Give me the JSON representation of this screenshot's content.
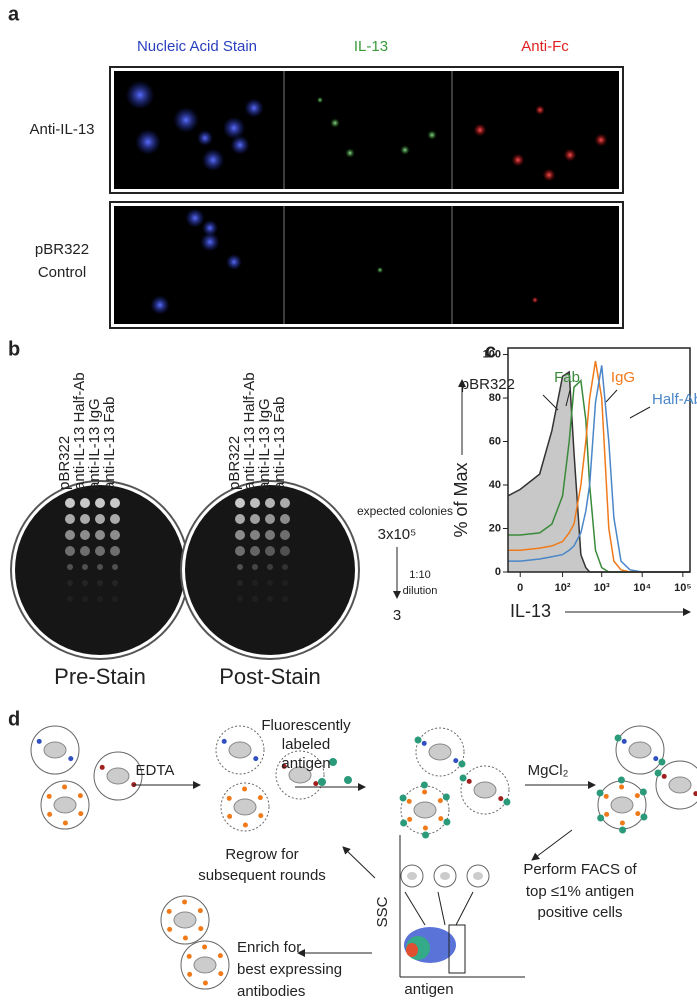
{
  "panel_a": {
    "label": "a",
    "columns": [
      "Nucleic Acid Stain",
      "IL-13",
      "Anti-Fc"
    ],
    "rows": [
      [
        "Anti-IL-13"
      ],
      [
        "pBR322",
        "Control"
      ]
    ]
  },
  "panel_b": {
    "label": "b",
    "plate_labels": [
      "pBR322",
      "anti-IL-13 Half-Ab",
      "anti-IL-13 IgG",
      "anti-IL-13 Fab"
    ],
    "plates": [
      "Pre-Stain",
      "Post-Stain"
    ],
    "expected": "expected colonies",
    "top": "3x10⁵",
    "dilution": [
      "1:10",
      "dilution"
    ],
    "bottom": "3"
  },
  "panel_c": {
    "label": "c"
  },
  "chart_data": {
    "type": "line",
    "xlabel": "IL-13",
    "ylabel": "% of Max",
    "xscale": "biexponential",
    "x": [
      -10,
      0,
      20,
      50,
      100,
      150,
      200,
      300,
      400,
      500,
      700,
      1000,
      1500,
      2000,
      3000,
      5000,
      10000,
      150000
    ],
    "series": [
      {
        "name": "pBR322",
        "color": "#333333",
        "fill": "#c8c8c8",
        "values": [
          35,
          38,
          45,
          65,
          90,
          92,
          55,
          8,
          2,
          0,
          0,
          0,
          0,
          0,
          0,
          0,
          0,
          0
        ]
      },
      {
        "name": "Fab",
        "color": "#3a8a3a",
        "values": [
          17,
          17,
          18,
          22,
          35,
          60,
          85,
          88,
          70,
          40,
          10,
          2,
          0,
          0,
          0,
          0,
          0,
          0
        ]
      },
      {
        "name": "IgG",
        "color": "#f07a1a",
        "values": [
          10,
          10,
          11,
          12,
          14,
          18,
          22,
          40,
          60,
          80,
          97,
          80,
          20,
          5,
          1,
          0,
          0,
          0
        ]
      },
      {
        "name": "Half-Ab",
        "color": "#4a86c8",
        "values": [
          5,
          5,
          6,
          7,
          8,
          10,
          12,
          18,
          28,
          40,
          78,
          95,
          60,
          25,
          5,
          1,
          0,
          0
        ]
      }
    ],
    "xlim": [
      -10,
      150000
    ],
    "ylim": [
      0,
      103
    ],
    "xticks": [
      0,
      {
        "value": 100,
        "label": "10²"
      },
      {
        "value": 1000,
        "label": "10³"
      },
      {
        "value": 10000,
        "label": "10⁴"
      },
      {
        "value": 100000,
        "label": "10⁵"
      }
    ],
    "yticks": [
      0,
      20,
      40,
      60,
      80,
      100
    ],
    "grid": false
  },
  "panel_d": {
    "label": "d",
    "steps": {
      "edta": "EDTA",
      "fluor": [
        "Fluorescently",
        "labeled",
        "antigen"
      ],
      "mg": "MgCl₂",
      "facs": [
        "Perform FACS of",
        "top ≤1% antigen",
        "positive cells"
      ],
      "regrow": [
        "Regrow for",
        "subsequent rounds"
      ],
      "enrich": [
        "Enrich for",
        "best expressing",
        "antibodies"
      ]
    },
    "axes": {
      "y": "SSC",
      "x": "antigen"
    }
  }
}
